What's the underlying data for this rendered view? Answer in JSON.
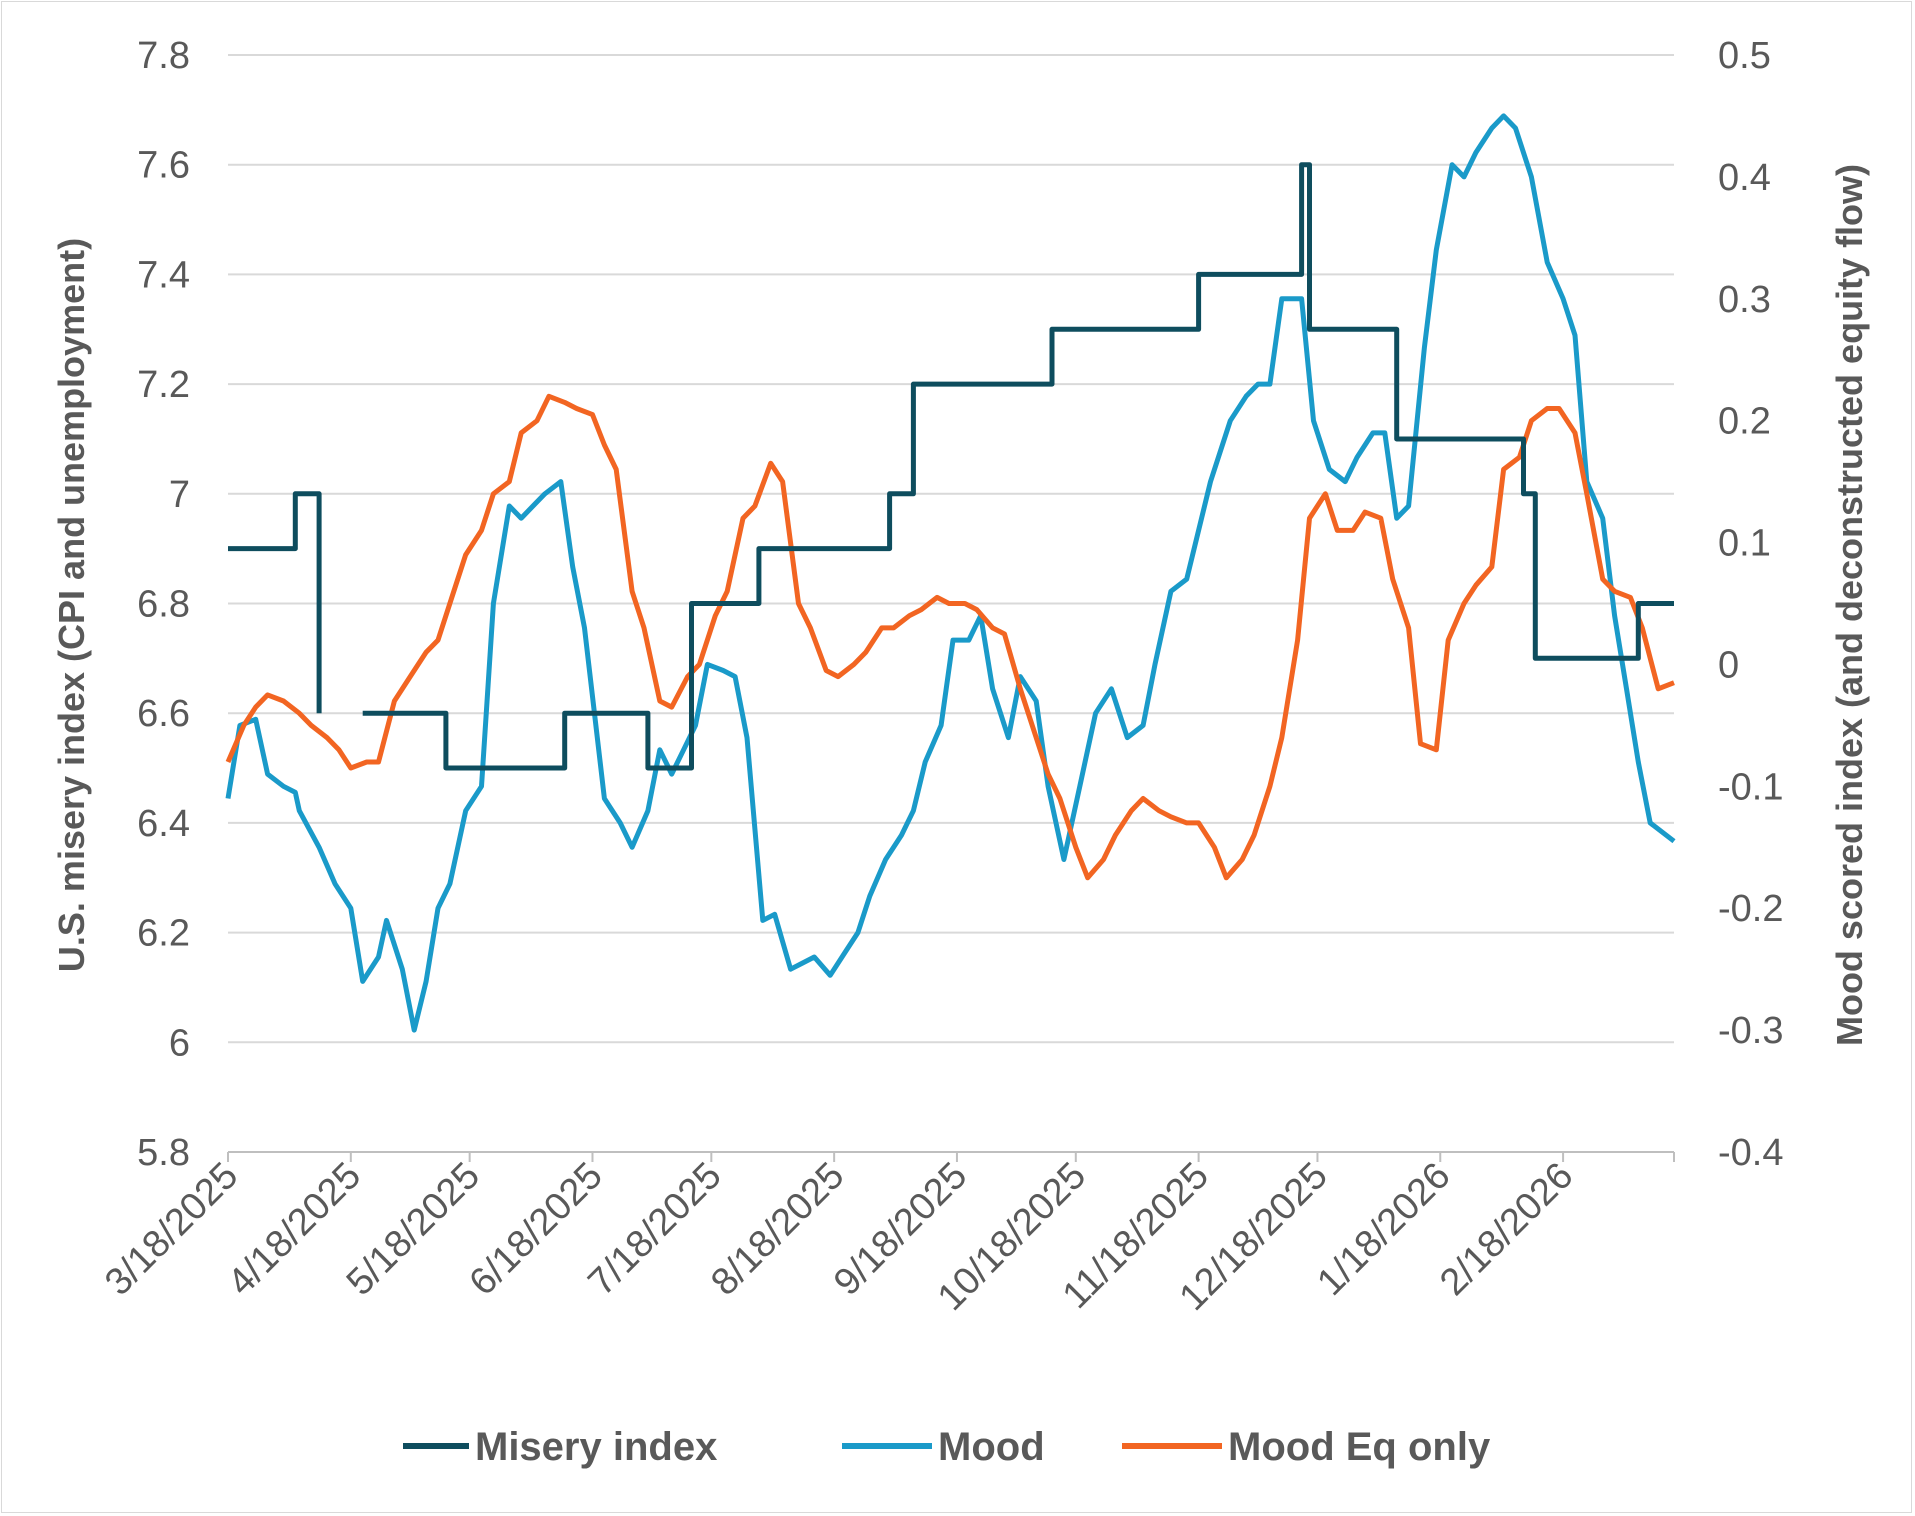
{
  "chart_data": {
    "type": "line",
    "title": "",
    "colors": {
      "misery": "#0e4d5e",
      "mood": "#1a9ac9",
      "mood_eq": "#f26522",
      "grid": "#d9d9d9",
      "text": "#595959"
    },
    "y_left": {
      "label": "U.S. misery index (CPI and unemployment)",
      "range": [
        5.8,
        7.8
      ],
      "ticks": [
        "5.8",
        "6",
        "6.2",
        "6.4",
        "6.6",
        "6.8",
        "7",
        "7.2",
        "7.4",
        "7.6",
        "7.8"
      ]
    },
    "y_right": {
      "label": "Mood scored index (and deconstructed equity flow)",
      "range": [
        -0.4,
        0.5
      ],
      "ticks": [
        "-0.4",
        "-0.3",
        "-0.2",
        "-0.1",
        "0",
        "0.1",
        "0.2",
        "0.3",
        "0.4",
        "0.5"
      ]
    },
    "x_axis": {
      "range": [
        "2025-03-18",
        "2026-03-18"
      ],
      "ticks": [
        "3/18/2025",
        "4/18/2025",
        "5/18/2025",
        "6/18/2025",
        "7/18/2025",
        "8/18/2025",
        "9/18/2025",
        "10/18/2025",
        "11/18/2025",
        "12/18/2025",
        "1/18/2026",
        "2/18/2026"
      ]
    },
    "legend": {
      "placement": "bottom",
      "entries": [
        "Misery index",
        "Mood",
        "Mood Eq only"
      ]
    },
    "series": [
      {
        "name": "Misery index",
        "axis": "left",
        "step": true,
        "points": [
          [
            "2025-03-18",
            6.9
          ],
          [
            "2025-04-04",
            7.0
          ],
          [
            "2025-04-10",
            6.6
          ],
          [
            "2025-04-20",
            null
          ],
          [
            "2025-04-21",
            6.6
          ],
          [
            "2025-05-12",
            6.5
          ],
          [
            "2025-06-11",
            6.6
          ],
          [
            "2025-07-02",
            6.5
          ],
          [
            "2025-07-13",
            6.8
          ],
          [
            "2025-07-30",
            6.9
          ],
          [
            "2025-09-01",
            7.0
          ],
          [
            "2025-09-07",
            7.2
          ],
          [
            "2025-10-12",
            7.3
          ],
          [
            "2025-11-18",
            7.4
          ],
          [
            "2025-12-14",
            7.6
          ],
          [
            "2025-12-16",
            7.3
          ],
          [
            "2026-01-07",
            7.1
          ],
          [
            "2026-02-08",
            7.0
          ],
          [
            "2026-02-11",
            6.7
          ],
          [
            "2026-03-09",
            6.8
          ],
          [
            "2026-03-18",
            6.8
          ]
        ]
      },
      {
        "name": "Mood",
        "axis": "right",
        "points": [
          [
            "2025-03-18",
            -0.11
          ],
          [
            "2025-03-21",
            -0.05
          ],
          [
            "2025-03-25",
            -0.045
          ],
          [
            "2025-03-28",
            -0.09
          ],
          [
            "2025-04-01",
            -0.1
          ],
          [
            "2025-04-04",
            -0.105
          ],
          [
            "2025-04-05",
            -0.12
          ],
          [
            "2025-04-10",
            -0.15
          ],
          [
            "2025-04-14",
            -0.18
          ],
          [
            "2025-04-18",
            -0.2
          ],
          [
            "2025-04-21",
            -0.26
          ],
          [
            "2025-04-25",
            -0.24
          ],
          [
            "2025-04-27",
            -0.21
          ],
          [
            "2025-05-01",
            -0.25
          ],
          [
            "2025-05-04",
            -0.3
          ],
          [
            "2025-05-07",
            -0.26
          ],
          [
            "2025-05-10",
            -0.2
          ],
          [
            "2025-05-13",
            -0.18
          ],
          [
            "2025-05-17",
            -0.12
          ],
          [
            "2025-05-21",
            -0.1
          ],
          [
            "2025-05-24",
            0.05
          ],
          [
            "2025-05-28",
            0.13
          ],
          [
            "2025-05-31",
            0.12
          ],
          [
            "2025-06-03",
            0.13
          ],
          [
            "2025-06-06",
            0.14
          ],
          [
            "2025-06-10",
            0.15
          ],
          [
            "2025-06-13",
            0.08
          ],
          [
            "2025-06-16",
            0.03
          ],
          [
            "2025-06-21",
            -0.11
          ],
          [
            "2025-06-25",
            -0.13
          ],
          [
            "2025-06-28",
            -0.15
          ],
          [
            "2025-07-02",
            -0.12
          ],
          [
            "2025-07-05",
            -0.07
          ],
          [
            "2025-07-08",
            -0.09
          ],
          [
            "2025-07-11",
            -0.07
          ],
          [
            "2025-07-14",
            -0.05
          ],
          [
            "2025-07-17",
            0.0
          ],
          [
            "2025-07-21",
            -0.005
          ],
          [
            "2025-07-24",
            -0.01
          ],
          [
            "2025-07-27",
            -0.06
          ],
          [
            "2025-07-31",
            -0.21
          ],
          [
            "2025-08-03",
            -0.205
          ],
          [
            "2025-08-07",
            -0.25
          ],
          [
            "2025-08-10",
            -0.245
          ],
          [
            "2025-08-13",
            -0.24
          ],
          [
            "2025-08-17",
            -0.255
          ],
          [
            "2025-08-21",
            -0.235
          ],
          [
            "2025-08-24",
            -0.22
          ],
          [
            "2025-08-27",
            -0.19
          ],
          [
            "2025-08-31",
            -0.16
          ],
          [
            "2025-09-04",
            -0.14
          ],
          [
            "2025-09-07",
            -0.12
          ],
          [
            "2025-09-10",
            -0.08
          ],
          [
            "2025-09-14",
            -0.05
          ],
          [
            "2025-09-17",
            0.02
          ],
          [
            "2025-09-21",
            0.02
          ],
          [
            "2025-09-24",
            0.04
          ],
          [
            "2025-09-27",
            -0.02
          ],
          [
            "2025-10-01",
            -0.06
          ],
          [
            "2025-10-04",
            -0.01
          ],
          [
            "2025-10-08",
            -0.03
          ],
          [
            "2025-10-11",
            -0.1
          ],
          [
            "2025-10-15",
            -0.16
          ],
          [
            "2025-10-19",
            -0.1
          ],
          [
            "2025-10-23",
            -0.04
          ],
          [
            "2025-10-27",
            -0.02
          ],
          [
            "2025-10-31",
            -0.06
          ],
          [
            "2025-11-04",
            -0.05
          ],
          [
            "2025-11-07",
            0.0
          ],
          [
            "2025-11-11",
            0.06
          ],
          [
            "2025-11-15",
            0.07
          ],
          [
            "2025-11-21",
            0.15
          ],
          [
            "2025-11-26",
            0.2
          ],
          [
            "2025-11-30",
            0.22
          ],
          [
            "2025-12-03",
            0.23
          ],
          [
            "2025-12-06",
            0.23
          ],
          [
            "2025-12-09",
            0.3
          ],
          [
            "2025-12-14",
            0.3
          ],
          [
            "2025-12-17",
            0.2
          ],
          [
            "2025-12-21",
            0.16
          ],
          [
            "2025-12-25",
            0.15
          ],
          [
            "2025-12-28",
            0.17
          ],
          [
            "2026-01-01",
            0.19
          ],
          [
            "2026-01-04",
            0.19
          ],
          [
            "2026-01-07",
            0.12
          ],
          [
            "2026-01-10",
            0.13
          ],
          [
            "2026-01-14",
            0.26
          ],
          [
            "2026-01-17",
            0.34
          ],
          [
            "2026-01-21",
            0.41
          ],
          [
            "2026-01-24",
            0.4
          ],
          [
            "2026-01-27",
            0.42
          ],
          [
            "2026-01-31",
            0.44
          ],
          [
            "2026-02-03",
            0.45
          ],
          [
            "2026-02-06",
            0.44
          ],
          [
            "2026-02-10",
            0.4
          ],
          [
            "2026-02-14",
            0.33
          ],
          [
            "2026-02-18",
            0.3
          ],
          [
            "2026-02-21",
            0.27
          ],
          [
            "2026-02-24",
            0.15
          ],
          [
            "2026-02-28",
            0.12
          ],
          [
            "2026-03-03",
            0.04
          ],
          [
            "2026-03-06",
            -0.02
          ],
          [
            "2026-03-09",
            -0.08
          ],
          [
            "2026-03-12",
            -0.13
          ],
          [
            "2026-03-18",
            -0.145
          ]
        ]
      },
      {
        "name": "Mood Eq only",
        "axis": "right",
        "points": [
          [
            "2025-03-18",
            -0.08
          ],
          [
            "2025-03-22",
            -0.05
          ],
          [
            "2025-03-25",
            -0.035
          ],
          [
            "2025-03-28",
            -0.025
          ],
          [
            "2025-04-01",
            -0.03
          ],
          [
            "2025-04-05",
            -0.04
          ],
          [
            "2025-04-08",
            -0.05
          ],
          [
            "2025-04-12",
            -0.06
          ],
          [
            "2025-04-15",
            -0.07
          ],
          [
            "2025-04-18",
            -0.085
          ],
          [
            "2025-04-22",
            -0.08
          ],
          [
            "2025-04-25",
            -0.08
          ],
          [
            "2025-04-29",
            -0.03
          ],
          [
            "2025-05-03",
            -0.01
          ],
          [
            "2025-05-07",
            0.01
          ],
          [
            "2025-05-10",
            0.02
          ],
          [
            "2025-05-14",
            0.06
          ],
          [
            "2025-05-17",
            0.09
          ],
          [
            "2025-05-21",
            0.11
          ],
          [
            "2025-05-24",
            0.14
          ],
          [
            "2025-05-28",
            0.15
          ],
          [
            "2025-05-31",
            0.19
          ],
          [
            "2025-06-04",
            0.2
          ],
          [
            "2025-06-07",
            0.22
          ],
          [
            "2025-06-11",
            0.215
          ],
          [
            "2025-06-14",
            0.21
          ],
          [
            "2025-06-18",
            0.205
          ],
          [
            "2025-06-21",
            0.18
          ],
          [
            "2025-06-24",
            0.16
          ],
          [
            "2025-06-28",
            0.06
          ],
          [
            "2025-07-01",
            0.03
          ],
          [
            "2025-07-05",
            -0.03
          ],
          [
            "2025-07-08",
            -0.035
          ],
          [
            "2025-07-12",
            -0.01
          ],
          [
            "2025-07-15",
            0.0
          ],
          [
            "2025-07-19",
            0.04
          ],
          [
            "2025-07-22",
            0.06
          ],
          [
            "2025-07-26",
            0.12
          ],
          [
            "2025-07-29",
            0.13
          ],
          [
            "2025-08-02",
            0.165
          ],
          [
            "2025-08-05",
            0.15
          ],
          [
            "2025-08-09",
            0.05
          ],
          [
            "2025-08-12",
            0.03
          ],
          [
            "2025-08-16",
            -0.005
          ],
          [
            "2025-08-19",
            -0.01
          ],
          [
            "2025-08-23",
            0.0
          ],
          [
            "2025-08-26",
            0.01
          ],
          [
            "2025-08-30",
            0.03
          ],
          [
            "2025-09-02",
            0.03
          ],
          [
            "2025-09-06",
            0.04
          ],
          [
            "2025-09-09",
            0.045
          ],
          [
            "2025-09-13",
            0.055
          ],
          [
            "2025-09-16",
            0.05
          ],
          [
            "2025-09-20",
            0.05
          ],
          [
            "2025-09-23",
            0.045
          ],
          [
            "2025-09-27",
            0.03
          ],
          [
            "2025-09-30",
            0.025
          ],
          [
            "2025-10-04",
            -0.02
          ],
          [
            "2025-10-07",
            -0.05
          ],
          [
            "2025-10-11",
            -0.09
          ],
          [
            "2025-10-14",
            -0.11
          ],
          [
            "2025-10-18",
            -0.15
          ],
          [
            "2025-10-21",
            -0.175
          ],
          [
            "2025-10-25",
            -0.16
          ],
          [
            "2025-10-28",
            -0.14
          ],
          [
            "2025-11-01",
            -0.12
          ],
          [
            "2025-11-04",
            -0.11
          ],
          [
            "2025-11-08",
            -0.12
          ],
          [
            "2025-11-11",
            -0.125
          ],
          [
            "2025-11-15",
            -0.13
          ],
          [
            "2025-11-18",
            -0.13
          ],
          [
            "2025-11-22",
            -0.15
          ],
          [
            "2025-11-25",
            -0.175
          ],
          [
            "2025-11-29",
            -0.16
          ],
          [
            "2025-12-02",
            -0.14
          ],
          [
            "2025-12-06",
            -0.1
          ],
          [
            "2025-12-09",
            -0.06
          ],
          [
            "2025-12-13",
            0.02
          ],
          [
            "2025-12-16",
            0.12
          ],
          [
            "2025-12-20",
            0.14
          ],
          [
            "2025-12-23",
            0.11
          ],
          [
            "2025-12-27",
            0.11
          ],
          [
            "2025-12-30",
            0.125
          ],
          [
            "2026-01-03",
            0.12
          ],
          [
            "2026-01-06",
            0.07
          ],
          [
            "2026-01-10",
            0.03
          ],
          [
            "2026-01-13",
            -0.065
          ],
          [
            "2026-01-17",
            -0.07
          ],
          [
            "2026-01-20",
            0.02
          ],
          [
            "2026-01-24",
            0.05
          ],
          [
            "2026-01-27",
            0.065
          ],
          [
            "2026-01-31",
            0.08
          ],
          [
            "2026-02-03",
            0.16
          ],
          [
            "2026-02-07",
            0.17
          ],
          [
            "2026-02-10",
            0.2
          ],
          [
            "2026-02-14",
            0.21
          ],
          [
            "2026-02-17",
            0.21
          ],
          [
            "2026-02-21",
            0.19
          ],
          [
            "2026-02-24",
            0.14
          ],
          [
            "2026-02-28",
            0.07
          ],
          [
            "2026-03-03",
            0.06
          ],
          [
            "2026-03-07",
            0.055
          ],
          [
            "2026-03-10",
            0.03
          ],
          [
            "2026-03-14",
            -0.02
          ],
          [
            "2026-03-18",
            -0.015
          ]
        ]
      }
    ]
  }
}
